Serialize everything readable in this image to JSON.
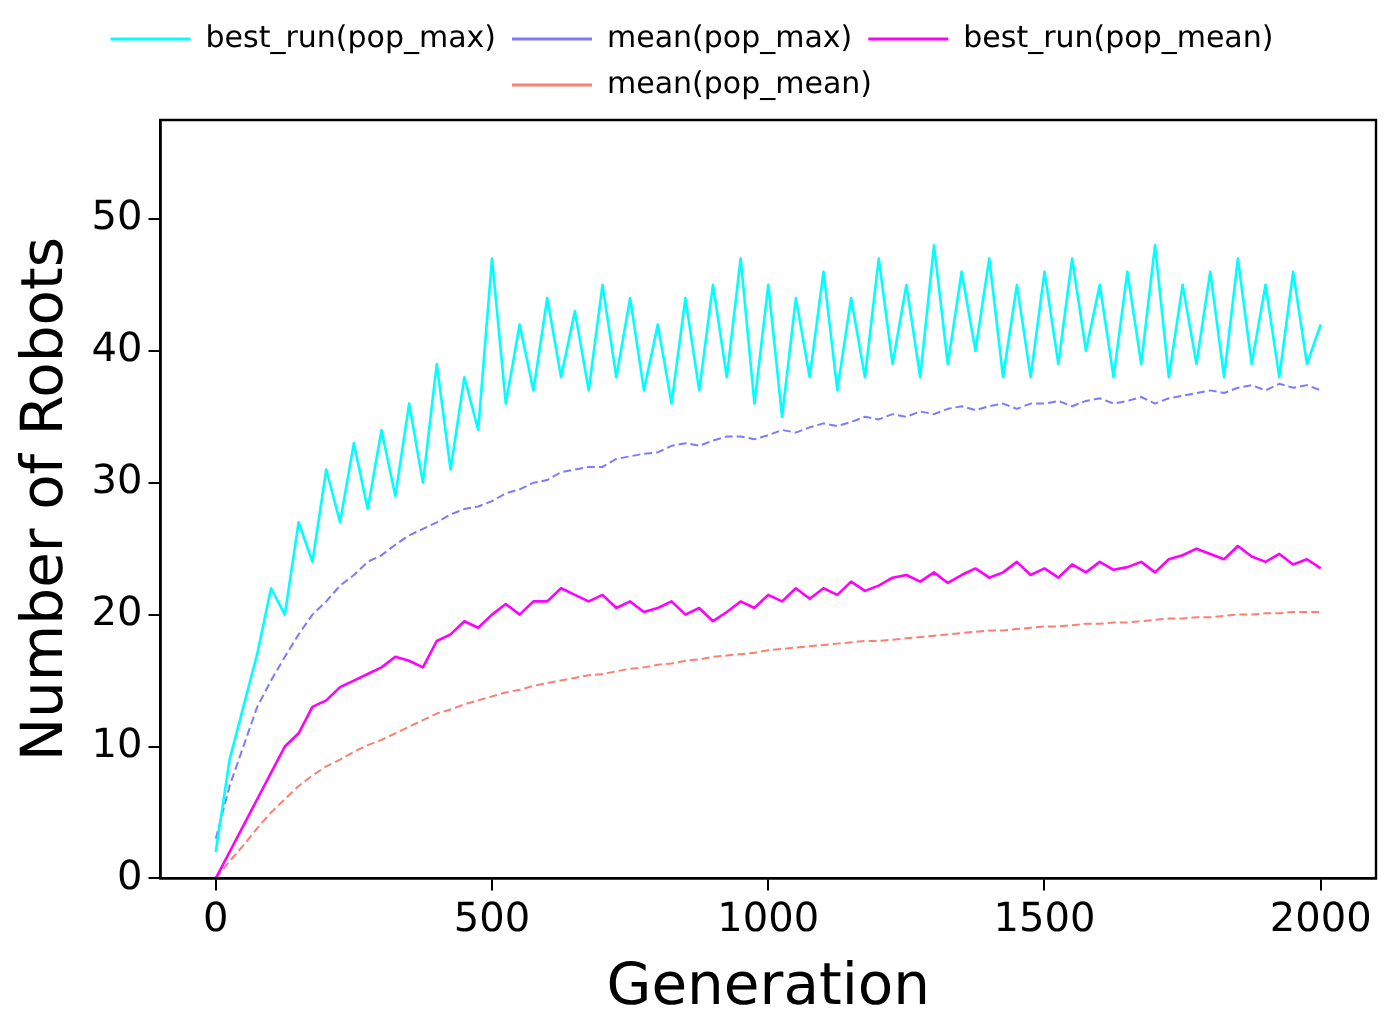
{
  "chart_data": {
    "type": "line",
    "xlabel": "Generation",
    "ylabel": "Number of Robots",
    "x": [
      0,
      25,
      50,
      75,
      100,
      125,
      150,
      175,
      200,
      225,
      250,
      275,
      300,
      325,
      350,
      375,
      400,
      425,
      450,
      475,
      500,
      525,
      550,
      575,
      600,
      625,
      650,
      675,
      700,
      725,
      750,
      775,
      800,
      825,
      850,
      875,
      900,
      925,
      950,
      975,
      1000,
      1025,
      1050,
      1075,
      1100,
      1125,
      1150,
      1175,
      1200,
      1225,
      1250,
      1275,
      1300,
      1325,
      1350,
      1375,
      1400,
      1425,
      1450,
      1475,
      1500,
      1525,
      1550,
      1575,
      1600,
      1625,
      1650,
      1675,
      1700,
      1725,
      1750,
      1775,
      1800,
      1825,
      1850,
      1875,
      1900,
      1925,
      1950,
      1975,
      2000
    ],
    "xlim": [
      -100,
      2100
    ],
    "xticks": [
      0,
      500,
      1000,
      1500,
      2000
    ],
    "ylim": [
      0,
      57.5
    ],
    "yticks": [
      0,
      10,
      20,
      30,
      40,
      50
    ],
    "grid": false,
    "legend": "top",
    "marker": "none",
    "series": [
      {
        "name": "best_run(pop_max)",
        "color": "#00ffff",
        "line_style": "solid",
        "values": [
          2,
          9,
          13,
          17,
          22,
          20,
          27,
          24,
          31,
          27,
          33,
          28,
          34,
          29,
          36,
          30,
          39,
          31,
          38,
          34,
          47,
          36,
          42,
          37,
          44,
          38,
          43,
          37,
          45,
          38,
          44,
          37,
          42,
          36,
          44,
          37,
          45,
          38,
          47,
          36,
          45,
          35,
          44,
          38,
          46,
          37,
          44,
          38,
          47,
          39,
          45,
          38,
          48,
          39,
          46,
          40,
          47,
          38,
          45,
          38,
          46,
          39,
          47,
          40,
          45,
          38,
          46,
          39,
          48,
          38,
          45,
          39,
          46,
          38,
          47,
          39,
          45,
          38,
          46,
          39,
          42
        ]
      },
      {
        "name": "mean(pop_max)",
        "color": "#7b7bff",
        "line_style": "dashed",
        "values": [
          3,
          7,
          10,
          13,
          15,
          16.8,
          18.5,
          20,
          21,
          22.2,
          23,
          24,
          24.5,
          25.3,
          26,
          26.5,
          27,
          27.6,
          28,
          28.2,
          28.6,
          29.2,
          29.5,
          30,
          30.2,
          30.8,
          31,
          31.2,
          31.2,
          31.8,
          32,
          32.2,
          32.3,
          32.8,
          33,
          32.8,
          33.2,
          33.5,
          33.5,
          33.3,
          33.6,
          34,
          33.8,
          34.2,
          34.5,
          34.3,
          34.6,
          35,
          34.8,
          35.2,
          35,
          35.4,
          35.2,
          35.6,
          35.8,
          35.5,
          35.8,
          36,
          35.6,
          36,
          36,
          36.2,
          35.8,
          36.2,
          36.4,
          36,
          36.2,
          36.5,
          36,
          36.4,
          36.6,
          36.8,
          37,
          36.8,
          37.2,
          37.4,
          37,
          37.5,
          37.2,
          37.4,
          37
        ]
      },
      {
        "name": "best_run(pop_mean)",
        "color": "#ff00ff",
        "line_style": "solid",
        "values": [
          0,
          2,
          4,
          6,
          8,
          10,
          11,
          13,
          13.5,
          14.5,
          15,
          15.5,
          16,
          16.8,
          16.5,
          16,
          18,
          18.5,
          19.5,
          19,
          20,
          20.8,
          20,
          21,
          21,
          22,
          21.5,
          21,
          21.5,
          20.5,
          21,
          20.2,
          20.5,
          21,
          20,
          20.5,
          19.5,
          20.2,
          21,
          20.5,
          21.5,
          21,
          22,
          21.2,
          22,
          21.5,
          22.5,
          21.8,
          22.2,
          22.8,
          23,
          22.5,
          23.2,
          22.4,
          23,
          23.5,
          22.8,
          23.2,
          24,
          23,
          23.5,
          22.8,
          23.8,
          23.2,
          24,
          23.4,
          23.6,
          24,
          23.2,
          24.2,
          24.5,
          25,
          24.6,
          24.2,
          25.2,
          24.4,
          24,
          24.6,
          23.8,
          24.2,
          23.5
        ]
      },
      {
        "name": "mean(pop_mean)",
        "color": "#fa8072",
        "line_style": "dashed",
        "values": [
          0,
          1.3,
          2.5,
          3.8,
          5,
          6,
          7,
          7.8,
          8.5,
          9,
          9.6,
          10.1,
          10.5,
          11,
          11.5,
          12,
          12.5,
          12.8,
          13.2,
          13.5,
          13.8,
          14.1,
          14.3,
          14.6,
          14.8,
          15,
          15.2,
          15.4,
          15.5,
          15.7,
          15.9,
          16,
          16.2,
          16.3,
          16.5,
          16.6,
          16.8,
          16.9,
          17,
          17.1,
          17.3,
          17.4,
          17.5,
          17.6,
          17.7,
          17.8,
          17.9,
          18,
          18,
          18.1,
          18.2,
          18.3,
          18.4,
          18.5,
          18.6,
          18.7,
          18.8,
          18.8,
          18.9,
          19,
          19.1,
          19.1,
          19.2,
          19.3,
          19.3,
          19.4,
          19.4,
          19.5,
          19.6,
          19.7,
          19.7,
          19.8,
          19.8,
          19.9,
          20,
          20,
          20.1,
          20.1,
          20.2,
          20.2,
          20.2
        ]
      }
    ]
  }
}
